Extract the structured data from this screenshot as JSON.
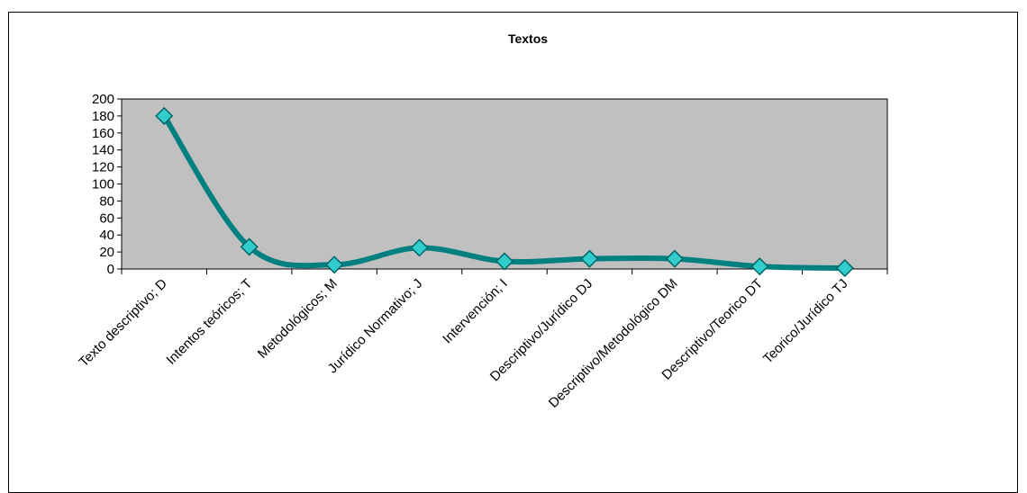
{
  "chart_data": {
    "type": "line",
    "title": "Textos",
    "xlabel": "",
    "ylabel": "",
    "categories": [
      "Texto descriptivo; D",
      "Intentos teóricos; T",
      "Metodológicos; M",
      "Jurídico Normativo; J",
      "Intervención; I",
      "Descriptivo/Jurídico DJ",
      "Descriptivo/Metodológico DM",
      "Descriptivo/Teorico DT",
      "Teorico/Jurídico TJ"
    ],
    "series": [
      {
        "values": [
          180,
          26,
          5,
          25,
          9,
          12,
          12,
          3,
          1
        ]
      }
    ],
    "ylim": [
      0,
      200
    ],
    "yticks": [
      0,
      20,
      40,
      60,
      80,
      100,
      120,
      140,
      160,
      180,
      200
    ],
    "grid": false,
    "smooth": true,
    "colors": {
      "plot_background": "#c0c0c0",
      "line": "#008080",
      "marker_fill": "#33cccc",
      "marker_stroke": "#006666"
    }
  }
}
